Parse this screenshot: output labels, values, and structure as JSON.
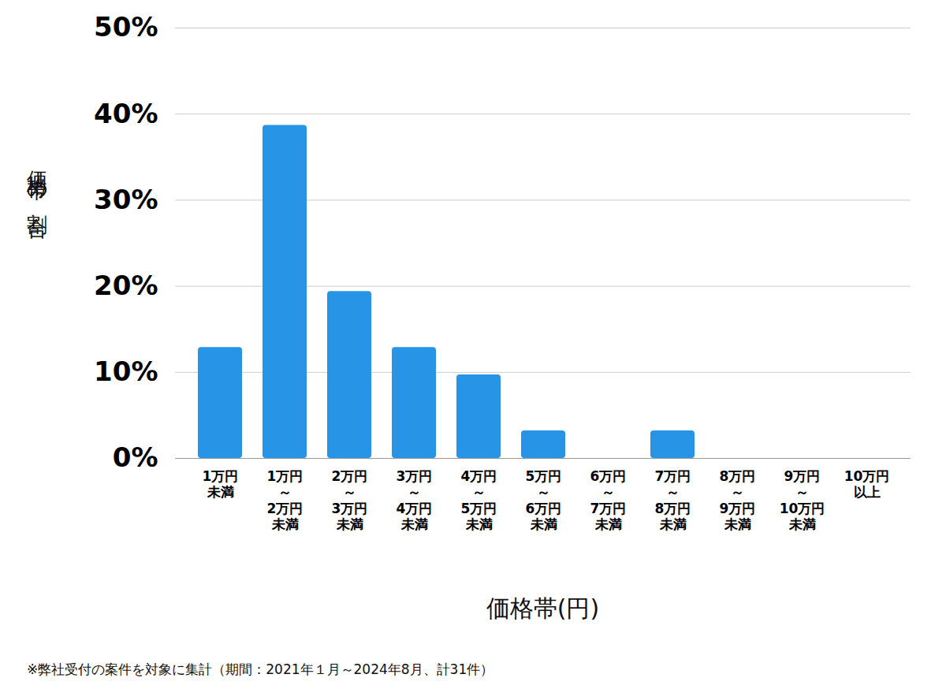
{
  "chart_data": {
    "type": "bar",
    "categories": [
      "1万円\n未満",
      "1万円\n～\n2万円\n未満",
      "2万円\n～\n3万円\n未満",
      "3万円\n～\n4万円\n未満",
      "4万円\n～\n5万円\n未満",
      "5万円\n～\n6万円\n未満",
      "6万円\n～\n7万円\n未満",
      "7万円\n～\n8万円\n未満",
      "8万円\n～\n9万円\n未満",
      "9万円\n～\n10万円\n未満",
      "10万円\n以上"
    ],
    "values": [
      12.9,
      38.7,
      19.4,
      12.9,
      9.7,
      3.2,
      0,
      3.2,
      0,
      0,
      0
    ],
    "color": "#2894e6",
    "ylim": [
      0,
      50
    ],
    "yticks": [
      {
        "value": 0,
        "label": "0%"
      },
      {
        "value": 10,
        "label": "10%"
      },
      {
        "value": 20,
        "label": "20%"
      },
      {
        "value": 30,
        "label": "30%"
      },
      {
        "value": 40,
        "label": "40%"
      },
      {
        "value": 50,
        "label": "50%"
      }
    ],
    "grid": true,
    "xlabel": "価格帯(円)",
    "ylabel": "価格帯の割合",
    "note": "※弊社受付の案件を対象に集計（期間：2021年１月～2024年8月、計31件）"
  }
}
